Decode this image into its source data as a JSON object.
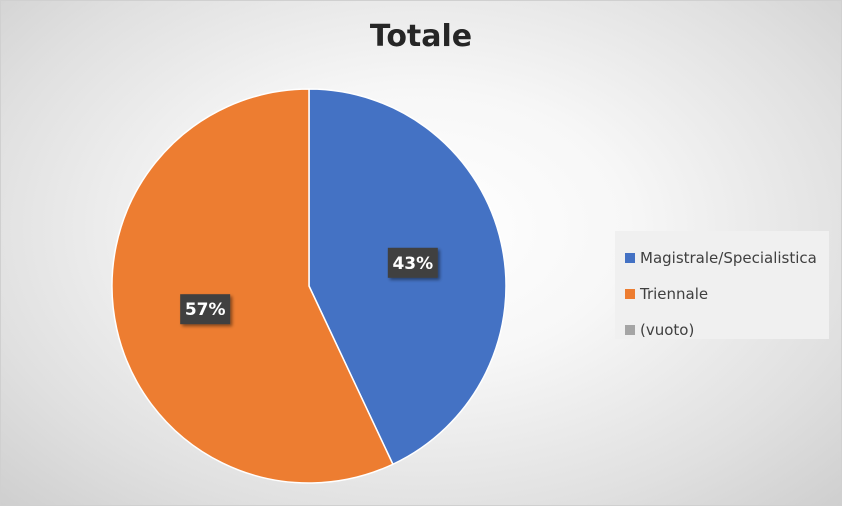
{
  "chart_data": {
    "type": "pie",
    "title": "Totale",
    "legend_position": "right",
    "slices": [
      {
        "label": "Magistrale/Specialistica",
        "value": 43,
        "value_label": "43%",
        "color": "#4472c4"
      },
      {
        "label": "Triennale",
        "value": 57,
        "value_label": "57%",
        "color": "#ed7d31"
      },
      {
        "label": "(vuoto)",
        "value": 0,
        "value_label": "",
        "color": "#a5a5a5"
      }
    ]
  }
}
